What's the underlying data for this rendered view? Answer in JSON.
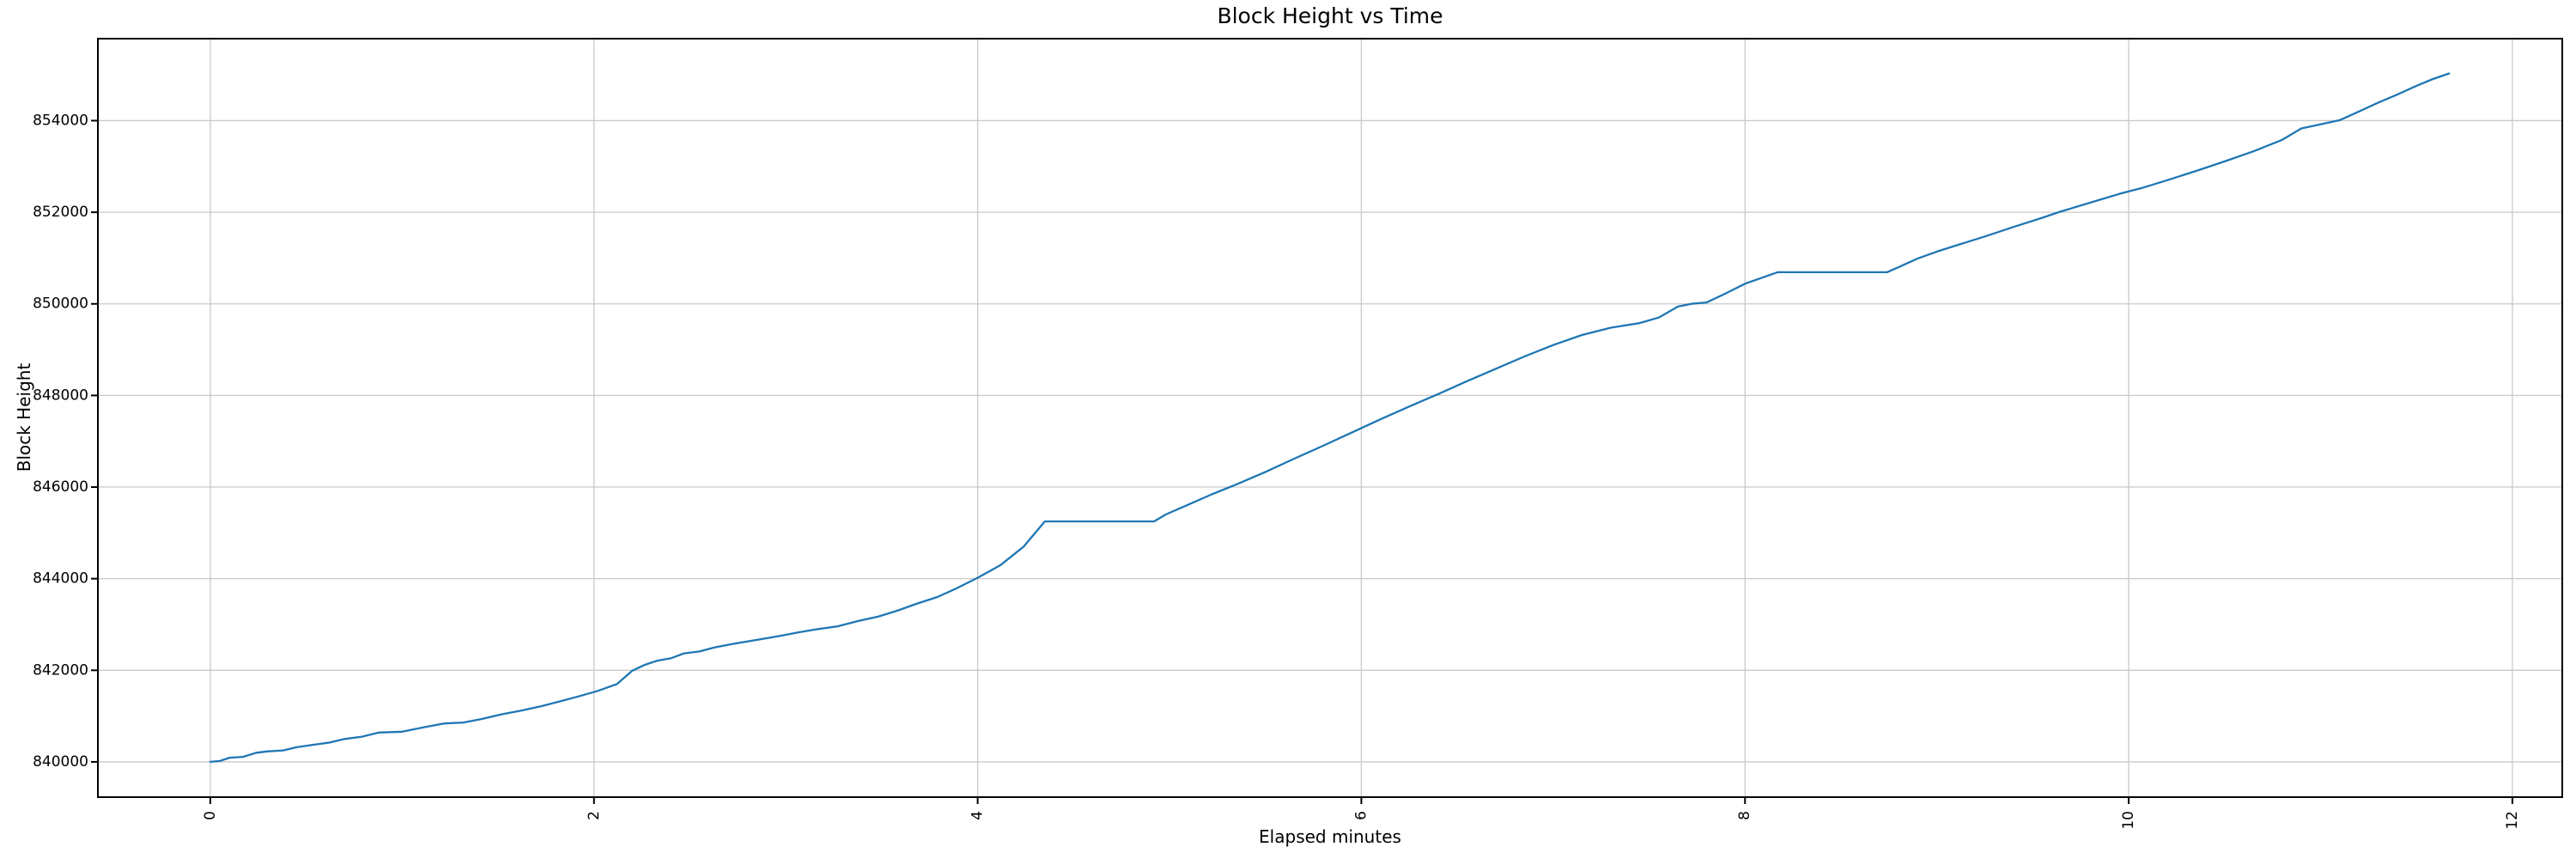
{
  "chart_data": {
    "type": "line",
    "title": "Block Height vs Time",
    "xlabel": "Elapsed minutes",
    "ylabel": "Block Height",
    "x_ticks": [
      0,
      2,
      4,
      6,
      8,
      10,
      12
    ],
    "y_ticks": [
      840000,
      842000,
      844000,
      846000,
      848000,
      850000,
      852000,
      854000
    ],
    "xlim": [
      -0.586,
      12.26
    ],
    "ylim": [
      839230,
      855790
    ],
    "grid": true,
    "legend": false,
    "x_tick_rotation_deg": 90,
    "colors": {
      "line": "#1f77b4",
      "grid": "#c9c9c9",
      "spine": "#000000",
      "background": "#ffffff"
    },
    "series": [
      {
        "name": "block-height",
        "color": "#1f77b4",
        "x": [
          0.0,
          0.05,
          0.1,
          0.17,
          0.24,
          0.3,
          0.38,
          0.45,
          0.53,
          0.62,
          0.7,
          0.79,
          0.88,
          1.0,
          1.12,
          1.22,
          1.32,
          1.42,
          1.52,
          1.62,
          1.72,
          1.82,
          1.92,
          2.02,
          2.12,
          2.2,
          2.26,
          2.33,
          2.4,
          2.47,
          2.55,
          2.63,
          2.73,
          2.8,
          2.9,
          2.97,
          3.07,
          3.17,
          3.27,
          3.38,
          3.48,
          3.58,
          3.68,
          3.79,
          3.89,
          4.0,
          4.12,
          4.24,
          4.35,
          4.92,
          4.98,
          5.1,
          5.22,
          5.35,
          5.5,
          5.65,
          5.8,
          5.95,
          6.1,
          6.25,
          6.4,
          6.55,
          6.7,
          6.85,
          7.0,
          7.15,
          7.3,
          7.45,
          7.55,
          7.65,
          7.72,
          7.8,
          7.9,
          8.0,
          8.17,
          8.74,
          8.8,
          8.9,
          9.0,
          9.12,
          9.25,
          9.4,
          9.55,
          9.64,
          9.8,
          9.95,
          10.07,
          10.2,
          10.35,
          10.5,
          10.65,
          10.8,
          10.9,
          11.0,
          11.1,
          11.2,
          11.3,
          11.4,
          11.5,
          11.58,
          11.67
        ],
        "y": [
          840000,
          840020,
          840090,
          840110,
          840200,
          840230,
          840250,
          840320,
          840370,
          840420,
          840500,
          840550,
          840640,
          840660,
          840760,
          840840,
          840860,
          840940,
          841040,
          841120,
          841210,
          841320,
          841430,
          841550,
          841700,
          841990,
          842110,
          842210,
          842260,
          842370,
          842410,
          842500,
          842580,
          842630,
          842700,
          842750,
          842830,
          842900,
          842960,
          843080,
          843170,
          843300,
          843450,
          843600,
          843790,
          844020,
          844300,
          844700,
          845250,
          845250,
          845400,
          845620,
          845840,
          846060,
          846330,
          846620,
          846900,
          847190,
          847480,
          847760,
          848030,
          848310,
          848580,
          848850,
          849100,
          849320,
          849480,
          849580,
          849700,
          849940,
          850000,
          850030,
          850230,
          850440,
          850690,
          850690,
          850800,
          850990,
          851140,
          851300,
          851470,
          851680,
          851880,
          852010,
          852210,
          852400,
          852530,
          852700,
          852900,
          853110,
          853330,
          853580,
          853830,
          853920,
          854010,
          854200,
          854390,
          854570,
          854760,
          854900,
          855030
        ]
      }
    ]
  }
}
